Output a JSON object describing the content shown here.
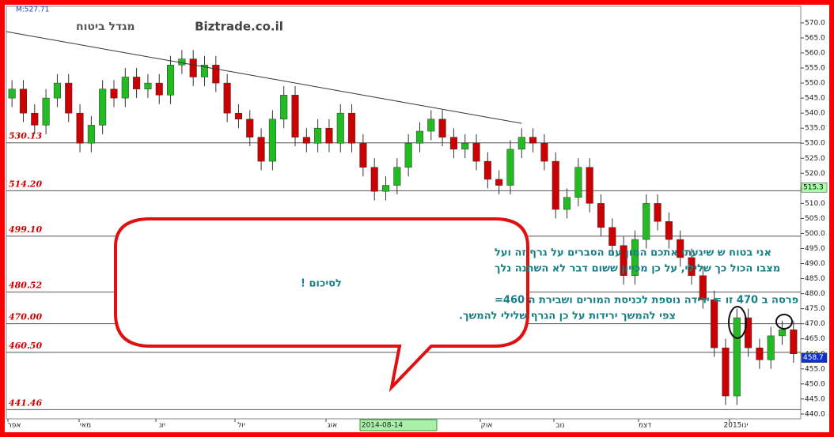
{
  "chart_data": {
    "type": "candlestick",
    "title": "מגדל ביטוח",
    "subtitle": "Biztrade.co.il",
    "info": "M:527.71",
    "ylim": [
      438.4,
      575.5
    ],
    "yticks": [
      {
        "value": 440,
        "label": "440.0"
      },
      {
        "value": 445,
        "label": "445.0"
      },
      {
        "value": 450,
        "label": "450.0"
      },
      {
        "value": 455,
        "label": "455.0"
      },
      {
        "value": 460,
        "label": "460.0"
      },
      {
        "value": 465,
        "label": "465.0"
      },
      {
        "value": 470,
        "label": "470.0"
      },
      {
        "value": 475,
        "label": "475.0"
      },
      {
        "value": 480,
        "label": "480.0"
      },
      {
        "value": 485,
        "label": "485.0"
      },
      {
        "value": 490,
        "label": "490.0"
      },
      {
        "value": 495,
        "label": "495.0"
      },
      {
        "value": 500,
        "label": "500.0"
      },
      {
        "value": 505,
        "label": "505.0"
      },
      {
        "value": 510,
        "label": "510.0"
      },
      {
        "value": 515,
        "label": "515.0"
      },
      {
        "value": 520,
        "label": "520.0"
      },
      {
        "value": 525,
        "label": "525.0"
      },
      {
        "value": 530,
        "label": "530.0"
      },
      {
        "value": 535,
        "label": "535.0"
      },
      {
        "value": 540,
        "label": "540.0"
      },
      {
        "value": 545,
        "label": "545.0"
      },
      {
        "value": 550,
        "label": "550.0"
      },
      {
        "value": 555,
        "label": "555.0"
      },
      {
        "value": 560,
        "label": "560.0"
      },
      {
        "value": 565,
        "label": "565.0"
      },
      {
        "value": 570,
        "label": "570.0"
      }
    ],
    "months": [
      "אפר",
      "מאי",
      "יונ",
      "יול",
      "אוג",
      "אוק",
      "נוב",
      "דצמ",
      "2015ינו"
    ],
    "date_box": "2014-08-14",
    "up_color": "#22bb22",
    "down_color": "#cc0000",
    "open": [
      545,
      548,
      540,
      536,
      545,
      550,
      540,
      530,
      536,
      548,
      545,
      552,
      548,
      550,
      546,
      556,
      558,
      552,
      556,
      550,
      540,
      538,
      532,
      524,
      538,
      546,
      532,
      530,
      535,
      530,
      540,
      530,
      522,
      514,
      516,
      522,
      530,
      534,
      538,
      532,
      528,
      530,
      524,
      518,
      516,
      528,
      532,
      530,
      524,
      508,
      512,
      522,
      510,
      502,
      496,
      486,
      498,
      510,
      504,
      498,
      492,
      486,
      478,
      462,
      446,
      472,
      462,
      458,
      466,
      468
    ],
    "high": [
      551,
      551,
      543,
      548,
      553,
      553,
      543,
      539,
      551,
      551,
      555,
      555,
      553,
      553,
      559,
      561,
      561,
      559,
      559,
      553,
      543,
      541,
      535,
      541,
      549,
      549,
      535,
      538,
      538,
      543,
      543,
      533,
      525,
      519,
      525,
      533,
      537,
      541,
      541,
      535,
      533,
      533,
      527,
      521,
      531,
      535,
      535,
      533,
      527,
      515,
      525,
      525,
      513,
      505,
      499,
      501,
      513,
      513,
      507,
      501,
      495,
      489,
      481,
      465,
      475,
      475,
      465,
      469,
      471,
      471
    ],
    "low": [
      542,
      537,
      533,
      533,
      542,
      537,
      527,
      527,
      533,
      542,
      542,
      545,
      545,
      543,
      543,
      553,
      549,
      549,
      547,
      537,
      535,
      529,
      521,
      521,
      535,
      529,
      527,
      527,
      527,
      527,
      527,
      519,
      511,
      511,
      513,
      519,
      527,
      531,
      529,
      525,
      525,
      521,
      515,
      513,
      513,
      525,
      527,
      521,
      505,
      505,
      509,
      507,
      499,
      493,
      483,
      483,
      495,
      501,
      495,
      489,
      483,
      475,
      459,
      443,
      443,
      459,
      455,
      455,
      463,
      457
    ],
    "close": [
      548,
      540,
      536,
      545,
      550,
      540,
      530,
      536,
      548,
      545,
      552,
      548,
      550,
      546,
      556,
      558,
      552,
      556,
      550,
      540,
      538,
      532,
      524,
      538,
      546,
      532,
      530,
      535,
      530,
      540,
      530,
      522,
      514,
      516,
      522,
      530,
      534,
      538,
      532,
      528,
      530,
      524,
      518,
      516,
      528,
      532,
      530,
      524,
      508,
      512,
      522,
      510,
      502,
      496,
      486,
      498,
      510,
      504,
      498,
      492,
      486,
      478,
      462,
      446,
      472,
      462,
      458,
      466,
      468,
      460
    ],
    "levels": [
      530.13,
      514.2,
      499.1,
      480.52,
      470.0,
      460.5,
      441.46
    ],
    "level_labels": [
      "530.13",
      "514.20",
      "499.10",
      "480.52",
      "470.00",
      "460.50",
      "441.46"
    ],
    "trendline": [
      567.1,
      536.6
    ],
    "price_markers": [
      {
        "value": 515.3,
        "color": "#aaffaa"
      },
      {
        "value": 458.7,
        "color": "#1030d0"
      }
    ],
    "annotation": [
      "אני בטוח ש שיגעתי אתכם המון עם הסברים על גרף זה ועל",
      "מצבו הכול כך שלילי, על כן מכייון ששום דבר לא השתנה נלך",
      "לסיכום !",
      "פרסה ב 470 זו = ירידה נוספת לכניסת המורים ושבירת ה 460=",
      "צפי להמשך ירידות על כן הגרף שלילי להמשך."
    ]
  }
}
